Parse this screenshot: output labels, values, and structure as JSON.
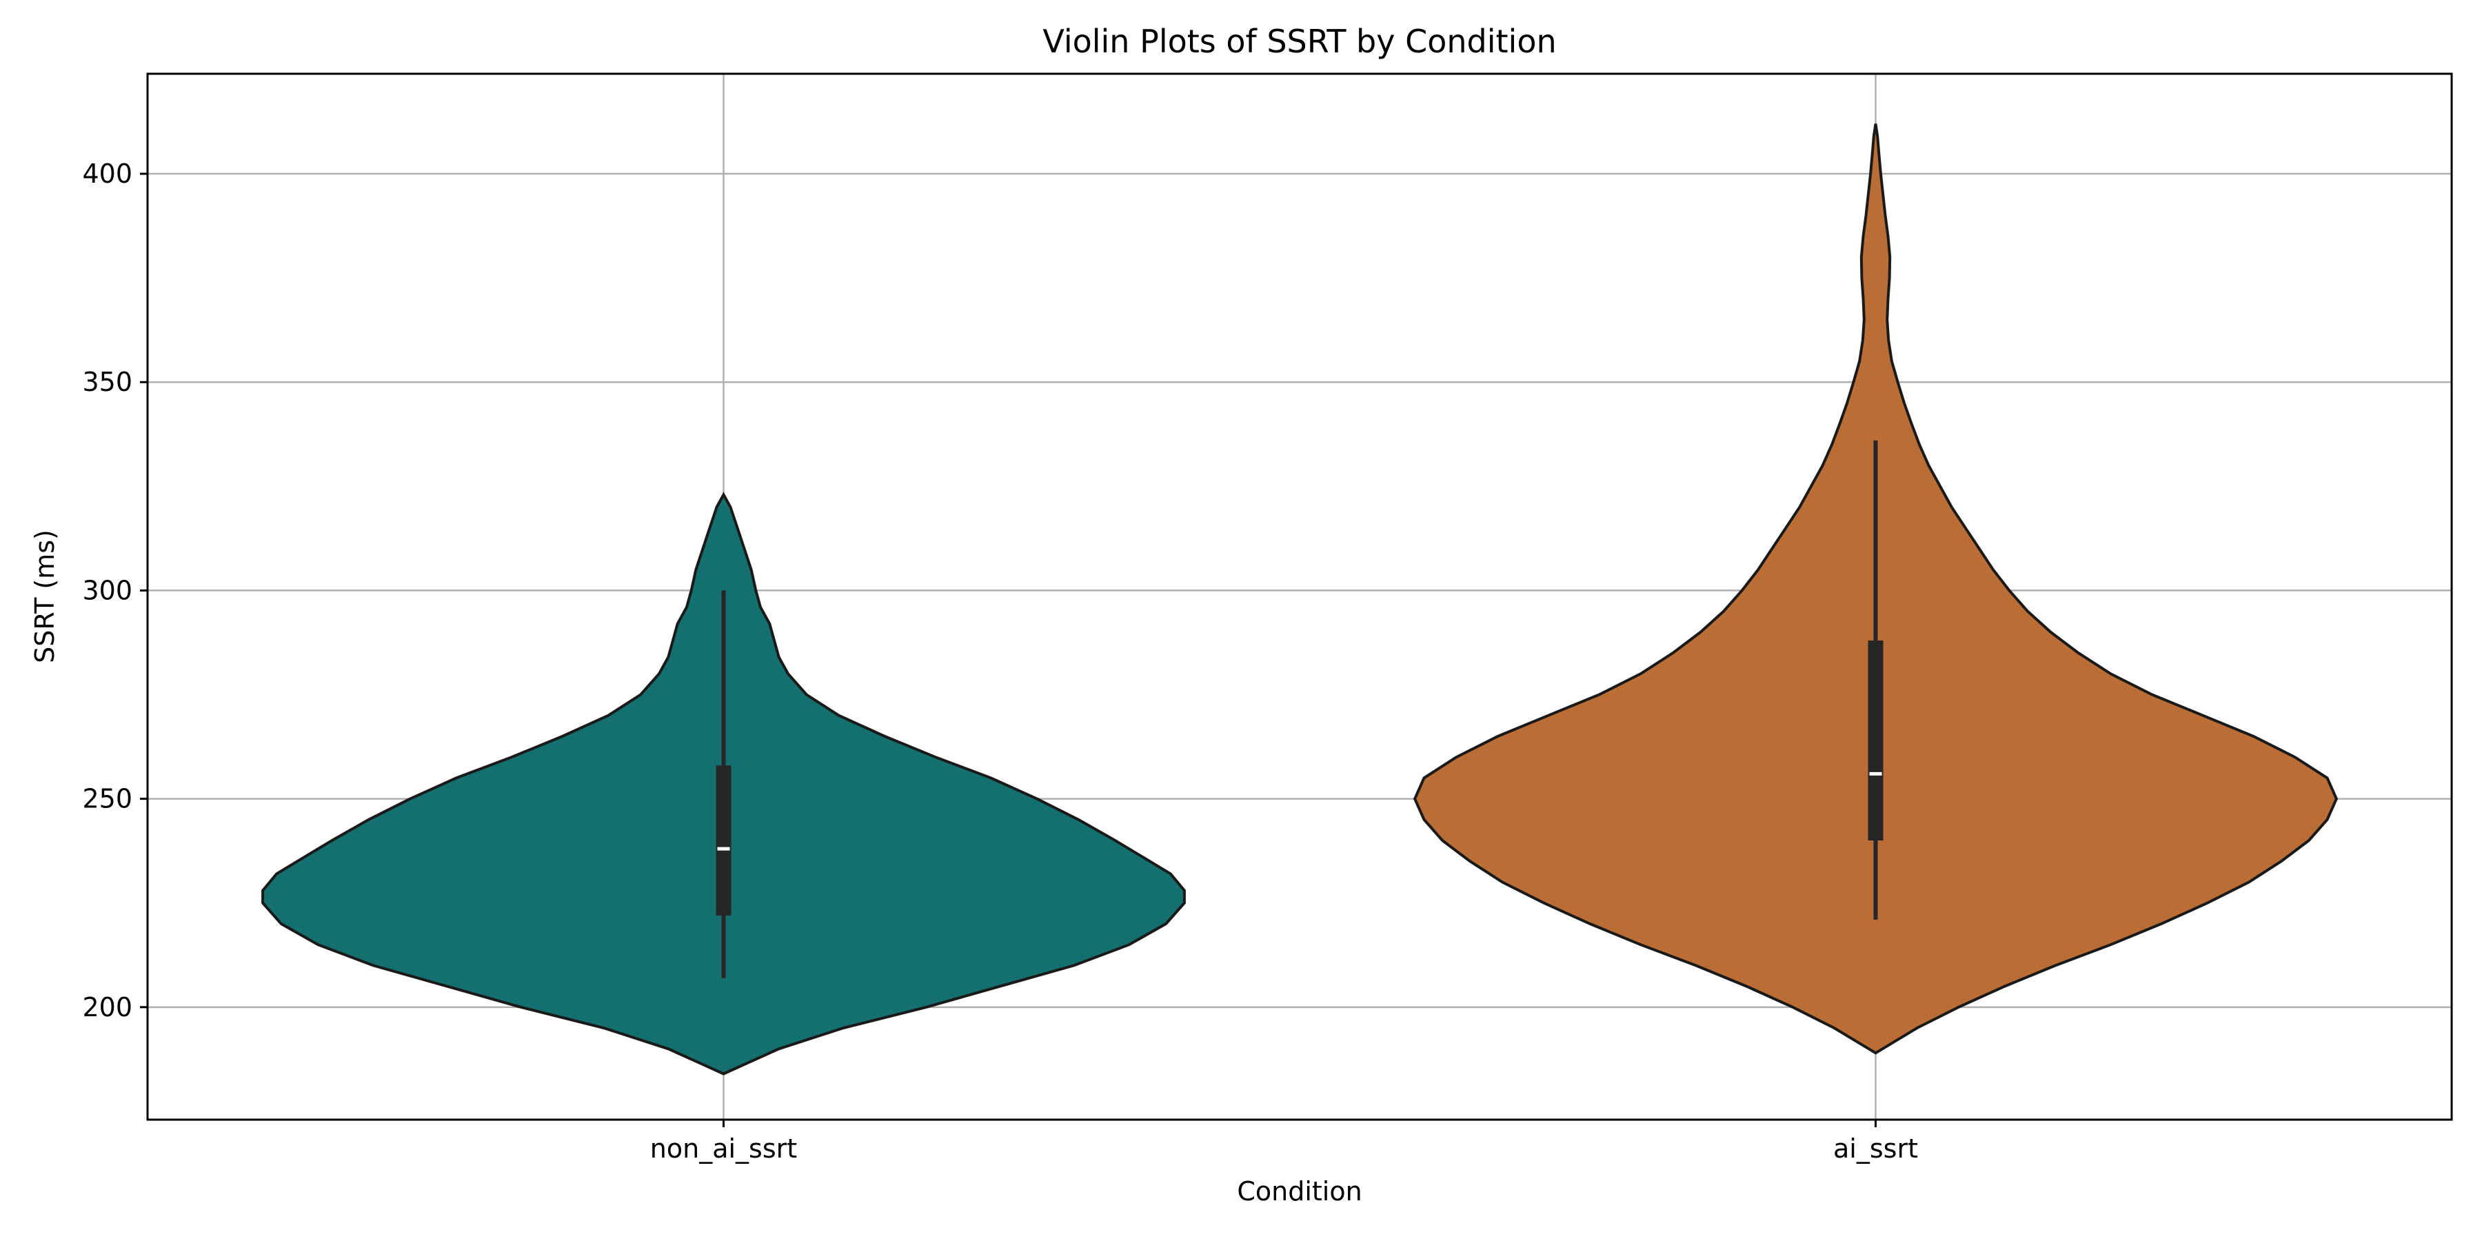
{
  "chart_data": {
    "type": "violin",
    "title": "Violin Plots of SSRT by Condition",
    "xlabel": "Condition",
    "ylabel": "SSRT (ms)",
    "ylim": [
      173,
      424
    ],
    "yticks": [
      200,
      250,
      300,
      350,
      400
    ],
    "grid": true,
    "categories": [
      "non_ai_ssrt",
      "ai_ssrt"
    ],
    "series": [
      {
        "category": "non_ai_ssrt",
        "color": "#13706e",
        "min": 184,
        "q1": 222,
        "median": 238,
        "q3": 258,
        "max": 323,
        "whisker_low": 207,
        "whisker_high": 300,
        "density": [
          [
            184,
            0.0
          ],
          [
            186,
            0.04
          ],
          [
            190,
            0.12
          ],
          [
            195,
            0.26
          ],
          [
            200,
            0.44
          ],
          [
            205,
            0.6
          ],
          [
            210,
            0.76
          ],
          [
            215,
            0.88
          ],
          [
            220,
            0.96
          ],
          [
            225,
            1.0
          ],
          [
            228,
            1.0
          ],
          [
            232,
            0.97
          ],
          [
            236,
            0.91
          ],
          [
            240,
            0.85
          ],
          [
            245,
            0.77
          ],
          [
            250,
            0.68
          ],
          [
            255,
            0.58
          ],
          [
            260,
            0.46
          ],
          [
            265,
            0.35
          ],
          [
            270,
            0.25
          ],
          [
            275,
            0.18
          ],
          [
            280,
            0.14
          ],
          [
            284,
            0.12
          ],
          [
            288,
            0.11
          ],
          [
            292,
            0.1
          ],
          [
            296,
            0.08
          ],
          [
            300,
            0.07
          ],
          [
            305,
            0.06
          ],
          [
            310,
            0.045
          ],
          [
            315,
            0.03
          ],
          [
            320,
            0.015
          ],
          [
            323,
            0.0
          ]
        ]
      },
      {
        "category": "ai_ssrt",
        "color": "#bb6d36",
        "min": 189,
        "q1": 240,
        "median": 256,
        "q3": 288,
        "max": 412,
        "whisker_low": 221,
        "whisker_high": 336,
        "density": [
          [
            189,
            0.0
          ],
          [
            191,
            0.03
          ],
          [
            195,
            0.09
          ],
          [
            200,
            0.18
          ],
          [
            205,
            0.28
          ],
          [
            210,
            0.39
          ],
          [
            215,
            0.51
          ],
          [
            220,
            0.62
          ],
          [
            225,
            0.72
          ],
          [
            230,
            0.81
          ],
          [
            235,
            0.88
          ],
          [
            240,
            0.94
          ],
          [
            245,
            0.98
          ],
          [
            250,
            1.0
          ],
          [
            255,
            0.98
          ],
          [
            260,
            0.91
          ],
          [
            265,
            0.82
          ],
          [
            270,
            0.71
          ],
          [
            275,
            0.6
          ],
          [
            280,
            0.51
          ],
          [
            285,
            0.44
          ],
          [
            290,
            0.38
          ],
          [
            295,
            0.33
          ],
          [
            300,
            0.29
          ],
          [
            305,
            0.255
          ],
          [
            310,
            0.225
          ],
          [
            315,
            0.195
          ],
          [
            320,
            0.165
          ],
          [
            325,
            0.14
          ],
          [
            330,
            0.115
          ],
          [
            335,
            0.095
          ],
          [
            340,
            0.078
          ],
          [
            345,
            0.062
          ],
          [
            350,
            0.048
          ],
          [
            355,
            0.035
          ],
          [
            360,
            0.028
          ],
          [
            365,
            0.025
          ],
          [
            370,
            0.027
          ],
          [
            375,
            0.03
          ],
          [
            380,
            0.031
          ],
          [
            385,
            0.027
          ],
          [
            390,
            0.021
          ],
          [
            395,
            0.016
          ],
          [
            400,
            0.011
          ],
          [
            405,
            0.007
          ],
          [
            409,
            0.004
          ],
          [
            412,
            0.0
          ]
        ]
      }
    ]
  }
}
